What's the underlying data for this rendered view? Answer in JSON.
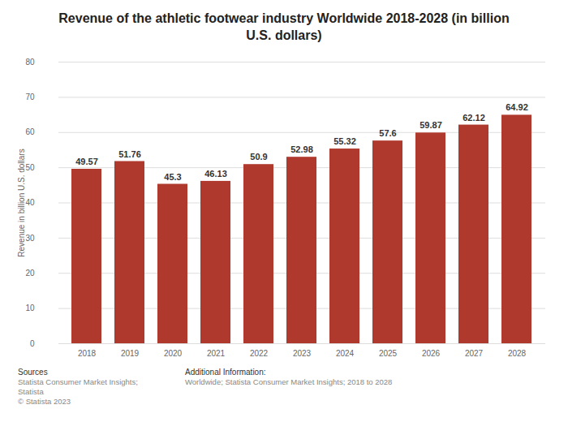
{
  "chart_data": {
    "type": "bar",
    "title": "Revenue of the athletic footwear industry Worldwide 2018-2028 (in billion U.S. dollars)",
    "y_label": "Revenue in billion U.S. dollars",
    "categories": [
      "2018",
      "2019",
      "2020",
      "2021",
      "2022",
      "2023",
      "2024",
      "2025",
      "2026",
      "2027",
      "2028"
    ],
    "values": [
      49.57,
      51.76,
      45.3,
      46.13,
      50.9,
      52.98,
      55.32,
      57.6,
      59.87,
      62.12,
      64.92
    ],
    "color": "#b0392e",
    "ylim": [
      0,
      80
    ],
    "yticks": [
      0,
      10,
      20,
      30,
      40,
      50,
      60,
      70,
      80
    ],
    "grid": true,
    "data_labels": true,
    "annotations": [
      [
        "Sources",
        "Statista Consumer Market Insights; Statista",
        "© Statista 2023"
      ],
      [
        "Additional Information:",
        "Worldwide; Statista Consumer Market Insights; 2018 to 2028"
      ]
    ]
  }
}
